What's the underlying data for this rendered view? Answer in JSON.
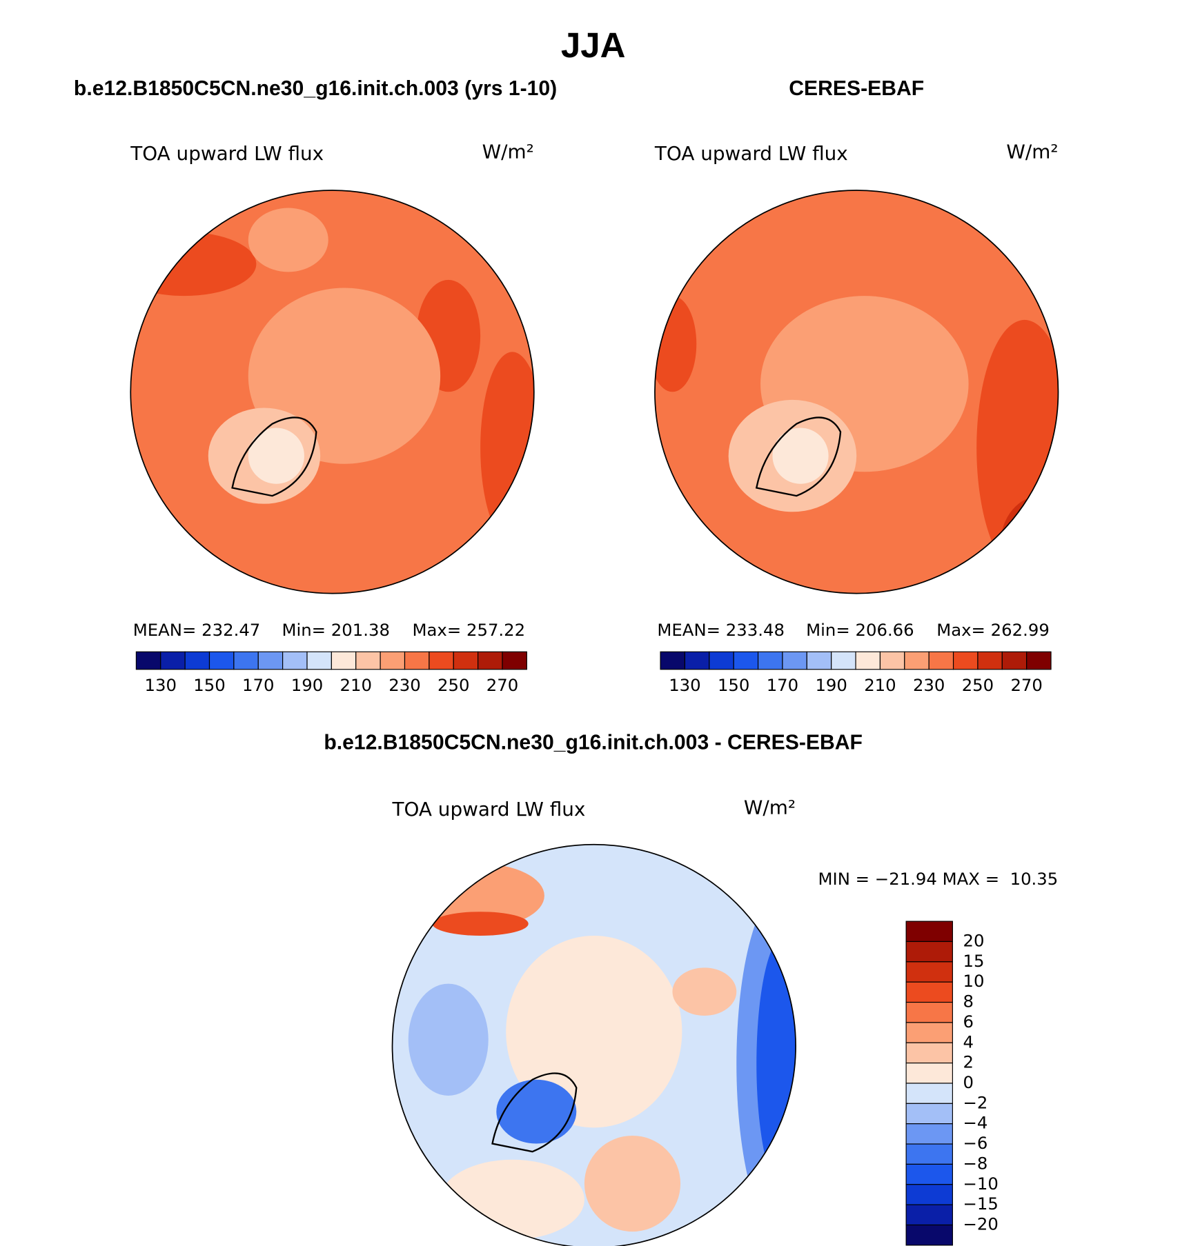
{
  "title": "JJA",
  "panels": [
    {
      "heading": "b.e12.B1850C5CN.ne30_g16.init.ch.003 (yrs 1-10)",
      "variable": "TOA upward LW flux",
      "units": "W/m²",
      "stats": [
        "MEAN= 232.47",
        "Min= 201.38",
        "Max= 257.22"
      ]
    },
    {
      "heading": "CERES-EBAF",
      "variable": "TOA upward LW flux",
      "units": "W/m²",
      "stats": [
        "MEAN= 233.48",
        "Min= 206.66",
        "Max= 262.99"
      ]
    }
  ],
  "colorbar": {
    "labels": [
      "130",
      "150",
      "170",
      "190",
      "210",
      "230",
      "250",
      "270"
    ],
    "colors": [
      "#08086b",
      "#0a1fa8",
      "#0d3bd4",
      "#1c57ec",
      "#3d75f0",
      "#6c97f3",
      "#a3bff7",
      "#d4e4fa",
      "#fde8d9",
      "#fcc4a6",
      "#fb9f74",
      "#f77647",
      "#ec4b1f",
      "#d0300f",
      "#ae1b08",
      "#7f0000"
    ]
  },
  "difference": {
    "heading": "b.e12.B1850C5CN.ne30_g16.init.ch.003 - CERES-EBAF",
    "variable": "TOA upward LW flux",
    "units": "W/m²",
    "stats": "MIN = −21.94 MAX =  10.35",
    "colorbar": {
      "labels": [
        "20",
        "15",
        "10",
        "8",
        "6",
        "4",
        "2",
        "0",
        "−2",
        "−4",
        "−6",
        "−8",
        "−10",
        "−15",
        "−20"
      ],
      "colors": [
        "#7f0000",
        "#ae1b08",
        "#d0300f",
        "#ec4b1f",
        "#f77647",
        "#fb9f74",
        "#fcc4a6",
        "#fde8d9",
        "#d4e4fa",
        "#a3bff7",
        "#6c97f3",
        "#3d75f0",
        "#1c57ec",
        "#0d3bd4",
        "#0a1fa8",
        "#08086b"
      ]
    }
  }
}
